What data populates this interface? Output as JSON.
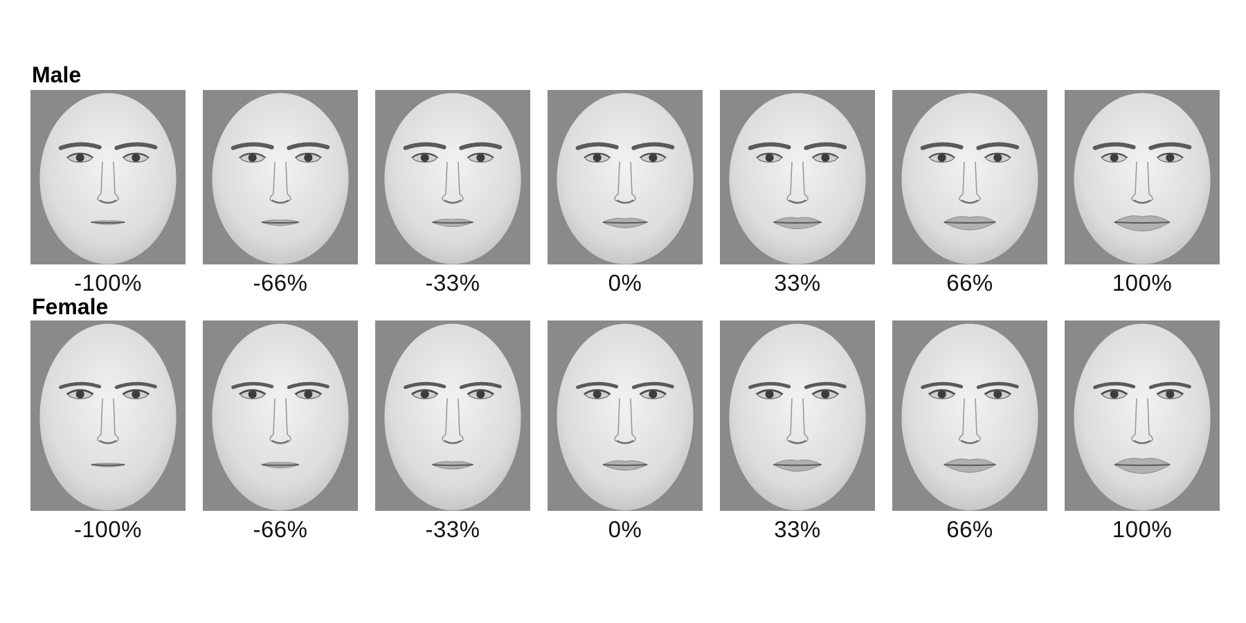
{
  "rows": [
    {
      "title": "Male",
      "labels": [
        "-100%",
        "-66%",
        "-33%",
        "0%",
        "33%",
        "66%",
        "100%"
      ],
      "lip_fullness": [
        -1.0,
        -0.66,
        -0.33,
        0,
        0.33,
        0.66,
        1.0
      ]
    },
    {
      "title": "Female",
      "labels": [
        "-100%",
        "-66%",
        "-33%",
        "0%",
        "33%",
        "66%",
        "100%"
      ],
      "lip_fullness": [
        -1.0,
        -0.66,
        -0.33,
        0,
        0.33,
        0.66,
        1.0
      ]
    }
  ],
  "colors": {
    "background": "#8a8a8a",
    "skin": "#e6e6e6",
    "features": "#3c3c3c"
  }
}
